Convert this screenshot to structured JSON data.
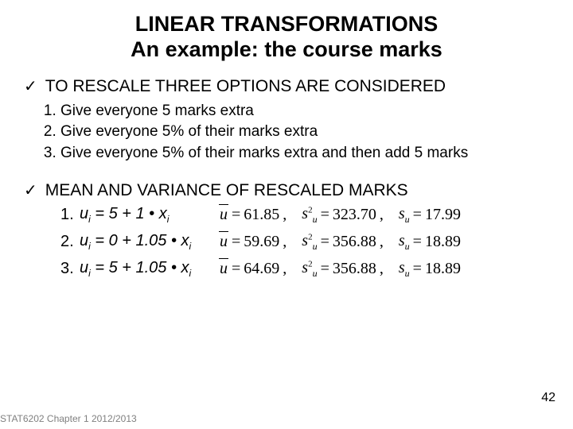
{
  "title_line1": "LINEAR TRANSFORMATIONS",
  "title_line2": "An example: the course marks",
  "section1": {
    "heading": "TO RESCALE THREE OPTIONS ARE CONSIDERED",
    "items": [
      "Give everyone 5 marks extra",
      "Give everyone 5% of their marks extra",
      "Give everyone 5% of their marks  extra and then add 5 marks"
    ]
  },
  "section2": {
    "heading": "MEAN AND VARIANCE OF RESCALED MARKS",
    "rows": [
      {
        "formula_prefix": "u",
        "formula_body": " = 5 + 1 • x",
        "mean": "61.85",
        "var": "323.70",
        "sd": "17.99"
      },
      {
        "formula_prefix": "u",
        "formula_body": " = 0 + 1.05 • x",
        "mean": "59.69",
        "var": "356.88",
        "sd": "18.89"
      },
      {
        "formula_prefix": "u",
        "formula_body": " = 5 + 1.05 • x",
        "mean": "64.69",
        "var": "356.88",
        "sd": "18.89"
      }
    ]
  },
  "footer": "STAT6202 Chapter 1 2012/2013",
  "page": "42",
  "checkmark": "✓"
}
